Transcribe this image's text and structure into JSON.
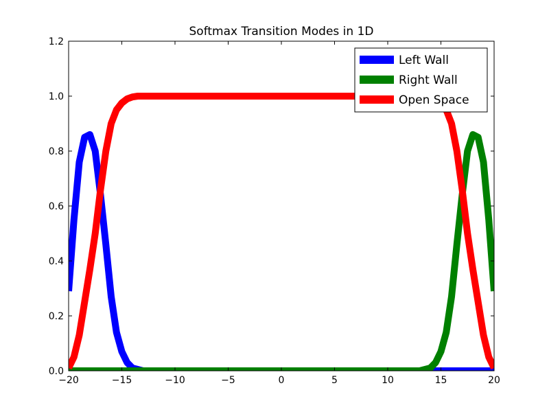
{
  "chart_data": {
    "type": "line",
    "title": "Softmax Transition Modes in 1D",
    "xlabel": "",
    "ylabel": "",
    "xlim": [
      -20,
      20
    ],
    "ylim": [
      0,
      1.2
    ],
    "xticks": [
      -20,
      -15,
      -10,
      -5,
      0,
      5,
      10,
      15,
      20
    ],
    "xtick_labels": [
      "−20",
      "−15",
      "−10",
      "−5",
      "0",
      "5",
      "10",
      "15",
      "20"
    ],
    "yticks": [
      0.0,
      0.2,
      0.4,
      0.6,
      0.8,
      1.0,
      1.2
    ],
    "ytick_labels": [
      "0.0",
      "0.2",
      "0.4",
      "0.6",
      "0.8",
      "1.0",
      "1.2"
    ],
    "grid": false,
    "legend_position": "top-right",
    "x": [
      -20,
      -19.5,
      -19,
      -18.5,
      -18,
      -17.5,
      -17,
      -16.5,
      -16,
      -15.5,
      -15,
      -14.5,
      -14,
      -13.5,
      -13,
      -12,
      -11,
      -10,
      -5,
      0,
      5,
      10,
      11,
      12,
      13,
      13.5,
      14,
      14.5,
      15,
      15.5,
      16,
      16.5,
      17,
      17.5,
      18,
      18.5,
      19,
      19.5,
      20
    ],
    "series": [
      {
        "name": "Left Wall",
        "color": "#0000ff",
        "values": [
          0.29,
          0.55,
          0.76,
          0.85,
          0.86,
          0.8,
          0.64,
          0.46,
          0.27,
          0.14,
          0.07,
          0.03,
          0.01,
          0.005,
          0,
          0,
          0,
          0,
          0,
          0,
          0,
          0,
          0,
          0,
          0,
          0,
          0,
          0,
          0,
          0,
          0,
          0,
          0,
          0,
          0,
          0,
          0,
          0,
          0
        ]
      },
      {
        "name": "Right Wall",
        "color": "#008000",
        "values": [
          0,
          0,
          0,
          0,
          0,
          0,
          0,
          0,
          0,
          0,
          0,
          0,
          0,
          0,
          0,
          0,
          0,
          0,
          0,
          0,
          0,
          0,
          0,
          0,
          0,
          0.005,
          0.01,
          0.03,
          0.07,
          0.14,
          0.27,
          0.46,
          0.64,
          0.8,
          0.86,
          0.85,
          0.76,
          0.55,
          0.29
        ]
      },
      {
        "name": "Open Space",
        "color": "#ff0000",
        "values": [
          0.01,
          0.05,
          0.13,
          0.25,
          0.37,
          0.5,
          0.66,
          0.8,
          0.9,
          0.95,
          0.975,
          0.99,
          0.997,
          1.0,
          1.0,
          1.0,
          1.0,
          1.0,
          1.0,
          1.0,
          1.0,
          1.0,
          1.0,
          1.0,
          1.0,
          1.0,
          0.997,
          0.99,
          0.975,
          0.95,
          0.9,
          0.8,
          0.66,
          0.5,
          0.37,
          0.25,
          0.13,
          0.05,
          0.01
        ]
      }
    ]
  }
}
